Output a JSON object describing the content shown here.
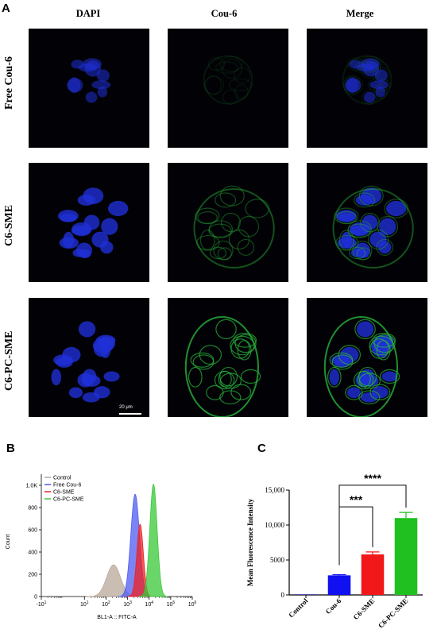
{
  "panels": {
    "a": "A",
    "b": "B",
    "c": "C"
  },
  "panel_a": {
    "columns": [
      "DAPI",
      "Cou-6",
      "Merge"
    ],
    "rows": [
      "Free Cou-6",
      "C6-SME",
      "C6-PC-SME"
    ],
    "scale_bar": "20 μm"
  },
  "colors": {
    "dapi": "#1f2fd6",
    "cou6": "#27b43a",
    "control": "#b8a89a",
    "free": "#4f5bf0",
    "sme": "#f02020",
    "pcsme": "#38c838"
  },
  "chart_data": [
    {
      "type": "area",
      "panel": "B",
      "xlabel": "BL1-A :: FITC-A",
      "ylabel": "Count",
      "xscale": "log",
      "xlim": [
        -1,
        6
      ],
      "ylim": [
        0,
        1100
      ],
      "x_tick_labels": [
        "-10^1",
        "10^1",
        "10^2",
        "10^3",
        "10^4",
        "10^5",
        "10^6"
      ],
      "y_tick_labels": [
        "0",
        "200",
        "400",
        "600",
        "800",
        "1.0K"
      ],
      "y_ticks": [
        0,
        200,
        400,
        600,
        800,
        1000
      ],
      "legend_position": "top-left",
      "series": [
        {
          "name": "Control",
          "peak_log": 2.35,
          "peak_count": 285,
          "width": 0.32
        },
        {
          "name": "Free Cou-6",
          "peak_log": 3.35,
          "peak_count": 920,
          "width": 0.2
        },
        {
          "name": "C6-SME",
          "peak_log": 3.58,
          "peak_count": 650,
          "width": 0.15
        },
        {
          "name": "C6-PC-SME",
          "peak_log": 4.2,
          "peak_count": 1010,
          "width": 0.17
        }
      ]
    },
    {
      "type": "bar",
      "panel": "C",
      "ylabel": "Mean Fluorescence Intensity",
      "ylim": [
        0,
        15000
      ],
      "y_tick_labels": [
        "0",
        "5000",
        "10,000",
        "15,000"
      ],
      "y_ticks": [
        0,
        5000,
        10000,
        15000
      ],
      "categories": [
        "Control",
        "Cou-6",
        "C6-SME",
        "C6-PC-SME"
      ],
      "values": [
        80,
        2800,
        5800,
        11000
      ],
      "errors": [
        0,
        100,
        350,
        800
      ],
      "significance": [
        {
          "from": "Cou-6",
          "to": "C6-SME",
          "label": "***"
        },
        {
          "from": "Cou-6",
          "to": "C6-PC-SME",
          "label": "****"
        }
      ]
    }
  ]
}
